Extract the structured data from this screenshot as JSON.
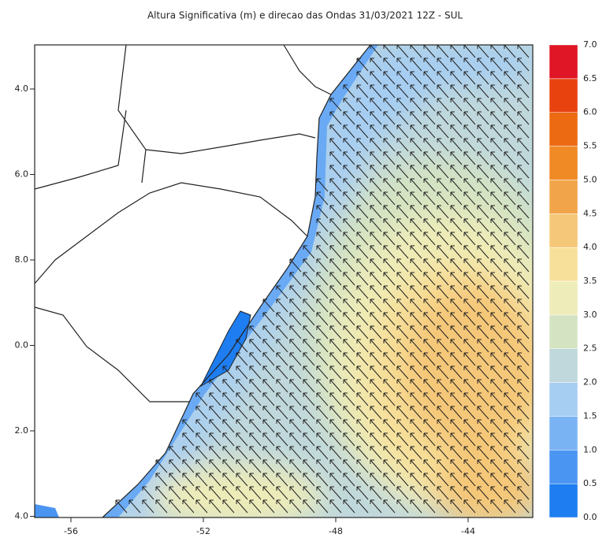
{
  "title": "Altura Significativa (m) e direcao das Ondas 31/03/2021 12Z - SUL",
  "map": {
    "lon_labels": [
      "-56",
      "-52",
      "-48",
      "-44"
    ],
    "lat_labels": [
      "4.0",
      "6.0",
      "8.0",
      "0.0",
      "2.0",
      "4.0"
    ]
  },
  "colorbar": {
    "ticks": [
      "0.0",
      "0.5",
      "1.0",
      "1.5",
      "2.0",
      "2.5",
      "3.0",
      "3.5",
      "4.0",
      "4.5",
      "5.0",
      "5.5",
      "6.0",
      "6.5",
      "7.0"
    ],
    "colors": [
      "#1e7df0",
      "#4a95f2",
      "#7ab3f3",
      "#a6cdf2",
      "#c0d8dc",
      "#d4e3c2",
      "#eeecb8",
      "#f7e09a",
      "#f5c778",
      "#f2a44a",
      "#f08a25",
      "#ec6a12",
      "#e8420e",
      "#e01525"
    ]
  }
}
